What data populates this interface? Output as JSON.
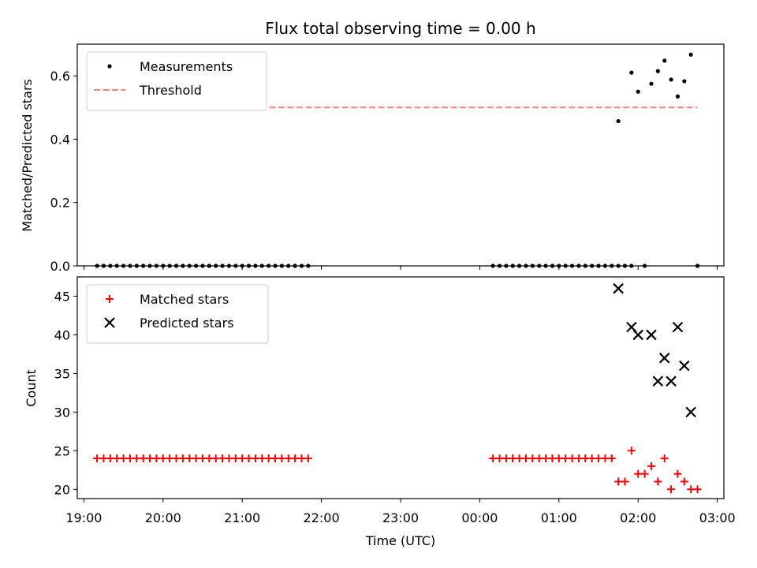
{
  "chart_data": [
    {
      "type": "scatter",
      "title": "Flux total observing time = 0.00 h",
      "ylabel": "Matched/Predicted stars",
      "xlabel": "",
      "ylim": [
        0,
        0.7
      ],
      "yticks": [
        0.0,
        0.2,
        0.4,
        0.6
      ],
      "ytick_labels": [
        "0.0",
        "0.2",
        "0.4",
        "0.6"
      ],
      "legend_position": "top-left",
      "series": [
        {
          "name": "Measurements",
          "marker": "dot",
          "color": "#000000",
          "x": [
            "19:10",
            "19:15",
            "19:20",
            "19:25",
            "19:30",
            "19:35",
            "19:40",
            "19:45",
            "19:50",
            "19:55",
            "20:00",
            "20:05",
            "20:10",
            "20:15",
            "20:20",
            "20:25",
            "20:30",
            "20:35",
            "20:40",
            "20:45",
            "20:50",
            "20:55",
            "21:00",
            "21:05",
            "21:10",
            "21:15",
            "21:20",
            "21:25",
            "21:30",
            "21:35",
            "21:40",
            "21:45",
            "21:50",
            "00:10",
            "00:15",
            "00:20",
            "00:25",
            "00:30",
            "00:35",
            "00:40",
            "00:45",
            "00:50",
            "00:55",
            "01:00",
            "01:05",
            "01:10",
            "01:15",
            "01:20",
            "01:25",
            "01:30",
            "01:35",
            "01:40",
            "01:45",
            "01:50",
            "01:55",
            "02:05",
            "02:45"
          ],
          "y": [
            0,
            0,
            0,
            0,
            0,
            0,
            0,
            0,
            0,
            0,
            0,
            0,
            0,
            0,
            0,
            0,
            0,
            0,
            0,
            0,
            0,
            0,
            0,
            0,
            0,
            0,
            0,
            0,
            0,
            0,
            0,
            0,
            0,
            0,
            0,
            0,
            0,
            0,
            0,
            0,
            0,
            0,
            0,
            0,
            0,
            0,
            0,
            0,
            0,
            0,
            0,
            0,
            0,
            0,
            0,
            0,
            0
          ]
        },
        {
          "name": "",
          "marker": "dot",
          "color": "#000000",
          "x": [
            "01:45",
            "01:55",
            "02:00",
            "02:10",
            "02:15",
            "02:20",
            "02:25",
            "02:30",
            "02:35",
            "02:40"
          ],
          "y": [
            0.457,
            0.61,
            0.55,
            0.575,
            0.615,
            0.648,
            0.588,
            0.535,
            0.583,
            0.667
          ]
        },
        {
          "name": "Threshold",
          "marker": "dashed-line",
          "color": "#ff7f7f",
          "x": [
            "19:10",
            "02:45"
          ],
          "y": [
            0.5,
            0.5
          ]
        }
      ]
    },
    {
      "type": "scatter",
      "title": "",
      "ylabel": "Count",
      "xlabel": "Time (UTC)",
      "ylim": [
        18.8,
        47.5
      ],
      "yticks": [
        20,
        25,
        30,
        35,
        40,
        45
      ],
      "ytick_labels": [
        "20",
        "25",
        "30",
        "35",
        "40",
        "45"
      ],
      "x_range": [
        "18:55",
        "03:05"
      ],
      "xticks": [
        "19:00",
        "20:00",
        "21:00",
        "22:00",
        "23:00",
        "00:00",
        "01:00",
        "02:00",
        "03:00"
      ],
      "legend_position": "top-left",
      "series": [
        {
          "name": "Matched stars",
          "marker": "plus",
          "color": "#ff0000",
          "x": [
            "19:10",
            "19:15",
            "19:20",
            "19:25",
            "19:30",
            "19:35",
            "19:40",
            "19:45",
            "19:50",
            "19:55",
            "20:00",
            "20:05",
            "20:10",
            "20:15",
            "20:20",
            "20:25",
            "20:30",
            "20:35",
            "20:40",
            "20:45",
            "20:50",
            "20:55",
            "21:00",
            "21:05",
            "21:10",
            "21:15",
            "21:20",
            "21:25",
            "21:30",
            "21:35",
            "21:40",
            "21:45",
            "21:50",
            "00:10",
            "00:15",
            "00:20",
            "00:25",
            "00:30",
            "00:35",
            "00:40",
            "00:45",
            "00:50",
            "00:55",
            "01:00",
            "01:05",
            "01:10",
            "01:15",
            "01:20",
            "01:25",
            "01:30",
            "01:35",
            "01:40",
            "01:45",
            "01:50",
            "01:55",
            "02:00",
            "02:05",
            "02:10",
            "02:15",
            "02:20",
            "02:25",
            "02:30",
            "02:35",
            "02:40",
            "02:45"
          ],
          "y": [
            24,
            24,
            24,
            24,
            24,
            24,
            24,
            24,
            24,
            24,
            24,
            24,
            24,
            24,
            24,
            24,
            24,
            24,
            24,
            24,
            24,
            24,
            24,
            24,
            24,
            24,
            24,
            24,
            24,
            24,
            24,
            24,
            24,
            24,
            24,
            24,
            24,
            24,
            24,
            24,
            24,
            24,
            24,
            24,
            24,
            24,
            24,
            24,
            24,
            24,
            24,
            24,
            21,
            21,
            25,
            22,
            22,
            23,
            21,
            24,
            20,
            22,
            21,
            20,
            20
          ]
        },
        {
          "name": "Predicted stars",
          "marker": "x",
          "color": "#000000",
          "x": [
            "01:45",
            "01:55",
            "02:00",
            "02:10",
            "02:15",
            "02:20",
            "02:25",
            "02:30",
            "02:35",
            "02:40"
          ],
          "y": [
            46,
            41,
            40,
            40,
            34,
            37,
            34,
            41,
            36,
            30
          ]
        }
      ]
    }
  ]
}
